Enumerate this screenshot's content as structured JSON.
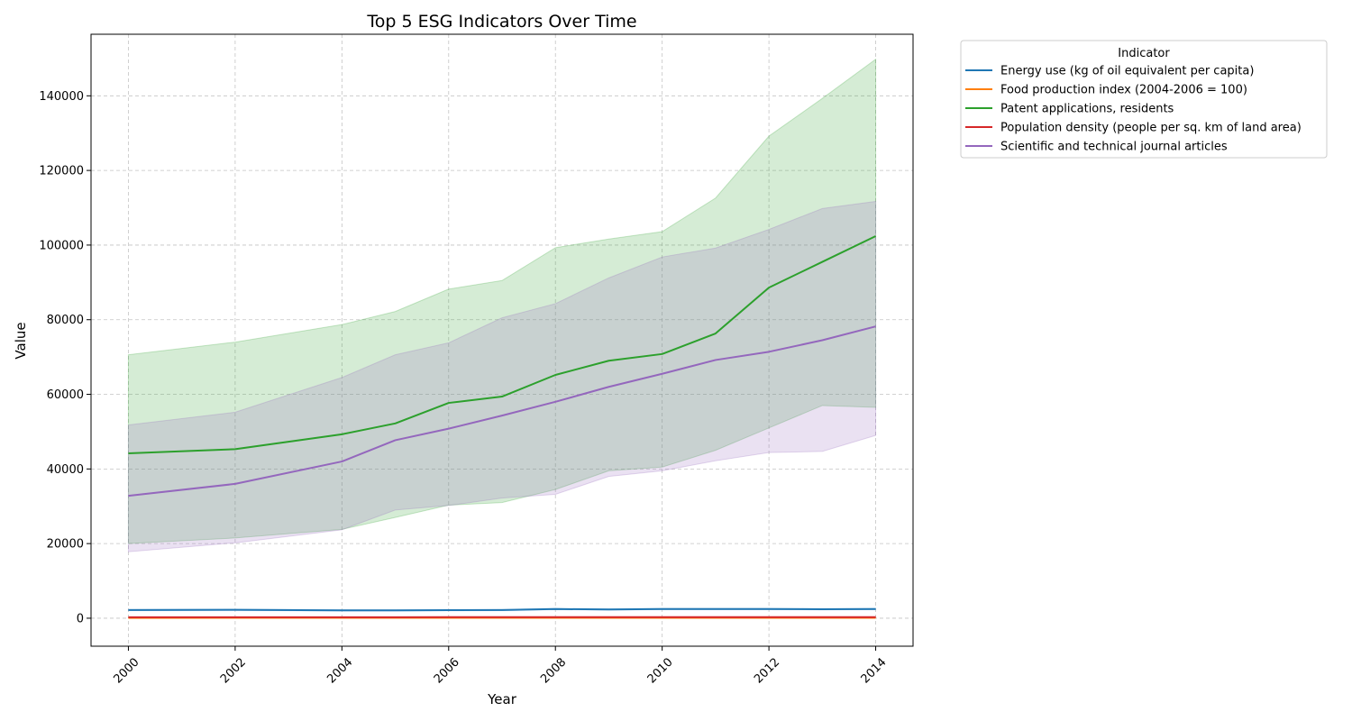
{
  "chart_data": {
    "type": "line",
    "title": "Top 5 ESG Indicators Over Time",
    "xlabel": "Year",
    "ylabel": "Value",
    "xlim": [
      1999.3,
      2014.7
    ],
    "ylim": [
      -7500,
      156500
    ],
    "x_ticks": [
      2000,
      2002,
      2004,
      2006,
      2008,
      2010,
      2012,
      2014
    ],
    "y_ticks": [
      0,
      20000,
      40000,
      60000,
      80000,
      100000,
      120000,
      140000
    ],
    "grid": true,
    "legend": {
      "title": "Indicator",
      "placement": "outside-top-right"
    },
    "x": [
      2000,
      2002,
      2004,
      2005,
      2006,
      2007,
      2008,
      2009,
      2010,
      2011,
      2012,
      2013,
      2014
    ],
    "series": [
      {
        "name": "Energy use (kg of oil equivalent per capita)",
        "color": "#1f77b4",
        "values": [
          2200,
          2250,
          2100,
          2100,
          2150,
          2200,
          2450,
          2350,
          2450,
          2450,
          2450,
          2400,
          2450
        ],
        "band_lower": [
          2050,
          2100,
          1950,
          1950,
          2000,
          2050,
          2300,
          2200,
          2300,
          2300,
          2300,
          2250,
          2300
        ],
        "band_upper": [
          2350,
          2400,
          2250,
          2250,
          2300,
          2350,
          2600,
          2500,
          2600,
          2600,
          2600,
          2550,
          2600
        ]
      },
      {
        "name": "Food production index (2004-2006 = 100)",
        "color": "#ff7f0e",
        "values": [
          90,
          95,
          98,
          100,
          102,
          104,
          108,
          110,
          112,
          115,
          118,
          120,
          122
        ],
        "band_lower": [
          80,
          85,
          88,
          90,
          92,
          94,
          98,
          100,
          102,
          105,
          108,
          110,
          112
        ],
        "band_upper": [
          100,
          105,
          108,
          110,
          112,
          114,
          118,
          120,
          122,
          125,
          128,
          130,
          132
        ]
      },
      {
        "name": "Patent applications, residents",
        "color": "#2ca02c",
        "values": [
          44200,
          45300,
          49300,
          52200,
          57700,
          59400,
          65200,
          69000,
          70800,
          76300,
          88600,
          95500,
          102400
        ],
        "band_lower": [
          20000,
          21500,
          23800,
          27000,
          30300,
          31000,
          34500,
          39500,
          40500,
          45000,
          51000,
          57000,
          56500
        ],
        "band_upper": [
          70600,
          74000,
          78700,
          82200,
          88200,
          90500,
          99300,
          101600,
          103600,
          112600,
          129200,
          139300,
          149800
        ]
      },
      {
        "name": "Population density (people per sq. km of land area)",
        "color": "#d62728",
        "values": [
          260,
          265,
          270,
          272,
          275,
          278,
          280,
          283,
          286,
          289,
          292,
          295,
          298
        ],
        "band_lower": [
          200,
          205,
          210,
          212,
          215,
          218,
          220,
          223,
          226,
          229,
          232,
          235,
          238
        ],
        "band_upper": [
          320,
          325,
          330,
          332,
          335,
          338,
          340,
          343,
          346,
          349,
          352,
          355,
          358
        ]
      },
      {
        "name": "Scientific and technical journal articles",
        "color": "#9467bd",
        "values": [
          32800,
          36000,
          42000,
          47700,
          50800,
          54300,
          58000,
          62000,
          65500,
          69200,
          71400,
          74500,
          78200
        ],
        "band_lower": [
          17800,
          20200,
          23700,
          29000,
          30200,
          32200,
          33200,
          38000,
          39500,
          42200,
          44400,
          44700,
          49000
        ],
        "band_upper": [
          51800,
          55200,
          64500,
          70600,
          73800,
          80500,
          84300,
          91200,
          96800,
          99200,
          104200,
          109800,
          111700
        ]
      }
    ]
  }
}
